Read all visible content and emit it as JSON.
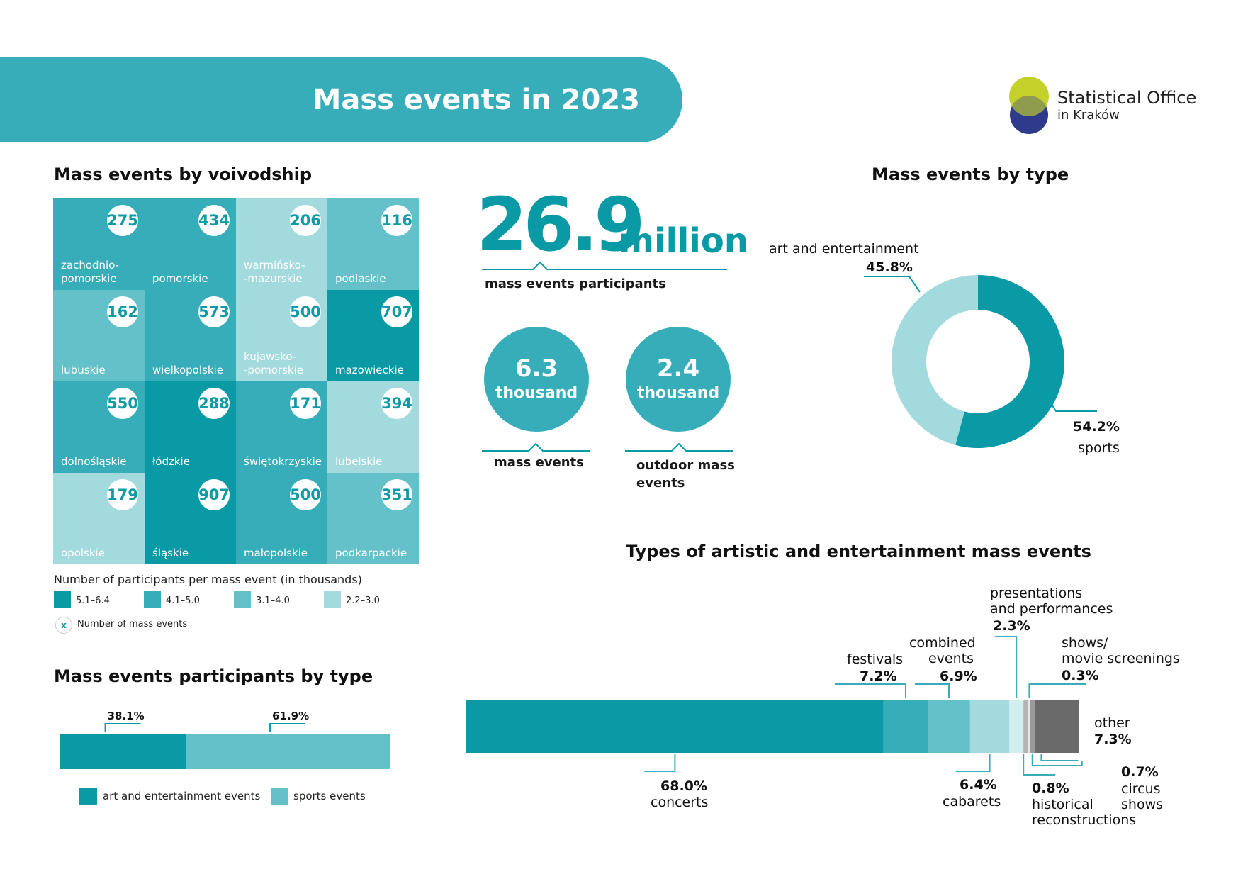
{
  "header": {
    "title": "Mass events in 2023"
  },
  "logo": {
    "line1": "Statistical Office",
    "line2": "in Kraków"
  },
  "voivodship": {
    "title": "Mass events by voivodship",
    "tiles": [
      {
        "name": "zachodnio-\npomorskie",
        "events": "275",
        "category": "4.1–5.0"
      },
      {
        "name": "pomorskie",
        "events": "434",
        "category": "4.1–5.0"
      },
      {
        "name": "warmińsko-\n-mazurskie",
        "events": "206",
        "category": "2.2–3.0"
      },
      {
        "name": "podlaskie",
        "events": "116",
        "category": "3.1–4.0"
      },
      {
        "name": "lubuskie",
        "events": "162",
        "category": "3.1–4.0"
      },
      {
        "name": "wielkopolskie",
        "events": "573",
        "category": "4.1–5.0"
      },
      {
        "name": "kujawsko-\n-pomorskie",
        "events": "500",
        "category": "2.2–3.0"
      },
      {
        "name": "mazowieckie",
        "events": "707",
        "category": "5.1–6.4"
      },
      {
        "name": "dolnośląskie",
        "events": "550",
        "category": "4.1–5.0"
      },
      {
        "name": "łódzkie",
        "events": "288",
        "category": "5.1–6.4"
      },
      {
        "name": "świętokrzyskie",
        "events": "171",
        "category": "4.1–5.0"
      },
      {
        "name": "lubelskie",
        "events": "394",
        "category": "2.2–3.0"
      },
      {
        "name": "opolskie",
        "events": "179",
        "category": "2.2–3.0"
      },
      {
        "name": "śląskie",
        "events": "907",
        "category": "5.1–6.4"
      },
      {
        "name": "małopolskie",
        "events": "500",
        "category": "4.1–5.0"
      },
      {
        "name": "podkarpackie",
        "events": "351",
        "category": "3.1–4.0"
      }
    ],
    "legend_title": "Number of participants per mass event (in thousands)",
    "legend": [
      {
        "label": "5.1–6.4",
        "color": "#0a9aa6"
      },
      {
        "label": "4.1–5.0",
        "color": "#36adb8"
      },
      {
        "label": "3.1–4.0",
        "color": "#65c1c9"
      },
      {
        "label": "2.2–3.0",
        "color": "#a3dade"
      }
    ],
    "legend_marker": "x",
    "legend_marker_label": "Number of mass events"
  },
  "stats": {
    "participants_value": "26.9",
    "participants_unit": "million",
    "participants_label": "mass events participants",
    "events_value": "6.3",
    "events_unit": "thousand",
    "events_label": "mass events",
    "outdoor_value": "2.4",
    "outdoor_unit": "thousand",
    "outdoor_label": "outdoor mass\nevents"
  },
  "participants_by_type": {
    "title": "Mass events participants by type",
    "legend_art": "art and entertainment events",
    "legend_sports": "sports events"
  },
  "by_type": {
    "title": "Mass events by type"
  },
  "artistic": {
    "title": "Types of artistic and entertainment mass events"
  },
  "chart_data": [
    {
      "type": "pie",
      "title": "Mass events by type",
      "categories": [
        "art and entertainment",
        "sports"
      ],
      "values": [
        45.8,
        54.2
      ],
      "labels": [
        "45.8%",
        "54.2%"
      ],
      "colors": [
        "#a3dade",
        "#0a9aa6"
      ]
    },
    {
      "type": "bar",
      "title": "Mass events participants by type",
      "categories": [
        "art and entertainment events",
        "sports events"
      ],
      "values": [
        38.1,
        61.9
      ],
      "labels": [
        "38.1%",
        "61.9%"
      ],
      "colors": [
        "#0a9aa6",
        "#65c1c9"
      ]
    },
    {
      "type": "bar",
      "title": "Types of artistic and entertainment mass events",
      "categories": [
        "concerts",
        "festivals",
        "combined events",
        "cabarets",
        "presentations and performances",
        "shows/ movie screenings",
        "historical reconstructions",
        "circus shows",
        "other"
      ],
      "values": [
        68.0,
        7.2,
        6.9,
        6.4,
        2.3,
        0.3,
        0.8,
        0.7,
        7.3
      ],
      "labels": [
        "68.0%",
        "7.2%",
        "6.9%",
        "6.4%",
        "2.3%",
        "0.3%",
        "0.8%",
        "0.7%",
        "7.3%"
      ],
      "colors": [
        "#0a9aa6",
        "#36adb8",
        "#65c1c9",
        "#a3dade",
        "#d2eef0",
        "#e6e6e6",
        "#b3b3b3",
        "#9a9a9a",
        "#6a6a6a"
      ]
    }
  ]
}
